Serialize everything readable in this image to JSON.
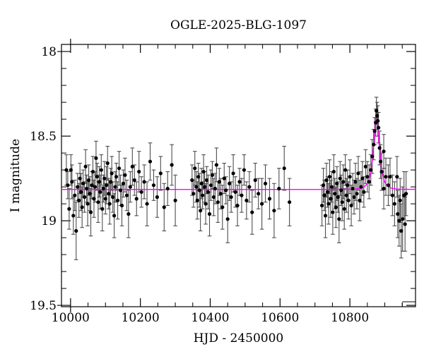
{
  "figure": {
    "background": "#ffffff"
  },
  "chart_data": {
    "type": "scatter",
    "title": "OGLE-2025-BLG-1097",
    "xlabel": "HJD - 2450000",
    "ylabel": "I magnitude",
    "xlim": [
      9974,
      10988
    ],
    "ylim": [
      19.508,
      17.958
    ],
    "y_axis_inverted": true,
    "grid": false,
    "legend": "none",
    "x_major_ticks": [
      {
        "value": 10000,
        "label": "10000"
      },
      {
        "value": 10200,
        "label": "10200"
      },
      {
        "value": 10400,
        "label": "10400"
      },
      {
        "value": 10600,
        "label": "10600"
      },
      {
        "value": 10800,
        "label": "10800"
      }
    ],
    "x_minor_step": 50,
    "y_major_ticks": [
      {
        "value": 18,
        "label": "18"
      },
      {
        "value": 18.5,
        "label": "18.5"
      },
      {
        "value": 19,
        "label": "19"
      },
      {
        "value": 19.5,
        "label": "19.5"
      }
    ],
    "y_minor_step": 0.1,
    "colors": {
      "points": "#000000",
      "error_bars": "#4d4d4d",
      "model_curve": "#ff00ff",
      "axis": "#000000"
    },
    "model": {
      "type": "paczynski_point_lens",
      "t0": 10876,
      "tE": 11.5,
      "u0": 0.86,
      "baseline_mag": 18.815,
      "peak_mag": 18.4
    },
    "points": [
      [
        9988,
        18.7,
        0.09
      ],
      [
        9992,
        18.79,
        0.08
      ],
      [
        9996,
        18.93,
        0.12
      ],
      [
        10001,
        18.7,
        0.09
      ],
      [
        10004,
        18.77,
        0.1
      ],
      [
        10008,
        18.97,
        0.11
      ],
      [
        10012,
        18.85,
        0.09
      ],
      [
        10016,
        19.06,
        0.17
      ],
      [
        10020,
        18.8,
        0.08
      ],
      [
        10024,
        18.88,
        0.1
      ],
      [
        10027,
        18.75,
        0.09
      ],
      [
        10030,
        18.83,
        0.11
      ],
      [
        10033,
        18.92,
        0.12
      ],
      [
        10036,
        18.78,
        0.08
      ],
      [
        10040,
        18.86,
        0.09
      ],
      [
        10043,
        18.68,
        0.1
      ],
      [
        10046,
        18.81,
        0.08
      ],
      [
        10049,
        18.9,
        0.13
      ],
      [
        10052,
        18.76,
        0.09
      ],
      [
        10055,
        18.84,
        0.1
      ],
      [
        10058,
        18.95,
        0.14
      ],
      [
        10061,
        18.79,
        0.08
      ],
      [
        10064,
        18.71,
        0.09
      ],
      [
        10067,
        18.87,
        0.11
      ],
      [
        10070,
        18.8,
        0.09
      ],
      [
        10073,
        18.63,
        0.1
      ],
      [
        10076,
        18.74,
        0.08
      ],
      [
        10079,
        18.89,
        0.12
      ],
      [
        10082,
        18.77,
        0.09
      ],
      [
        10085,
        18.83,
        0.1
      ],
      [
        10088,
        18.7,
        0.09
      ],
      [
        10091,
        18.93,
        0.13
      ],
      [
        10094,
        18.81,
        0.08
      ],
      [
        10097,
        18.75,
        0.1
      ],
      [
        10100,
        18.87,
        0.09
      ],
      [
        10103,
        18.79,
        0.11
      ],
      [
        10106,
        18.66,
        0.1
      ],
      [
        10109,
        18.84,
        0.09
      ],
      [
        10112,
        18.9,
        0.12
      ],
      [
        10115,
        18.77,
        0.08
      ],
      [
        10118,
        18.72,
        0.1
      ],
      [
        10121,
        18.86,
        0.09
      ],
      [
        10125,
        18.97,
        0.13
      ],
      [
        10128,
        18.8,
        0.09
      ],
      [
        10131,
        18.74,
        0.08
      ],
      [
        10135,
        18.88,
        0.11
      ],
      [
        10139,
        18.69,
        0.1
      ],
      [
        10143,
        18.82,
        0.09
      ],
      [
        10147,
        18.91,
        0.12
      ],
      [
        10151,
        18.78,
        0.08
      ],
      [
        10156,
        18.73,
        0.1
      ],
      [
        10161,
        18.85,
        0.09
      ],
      [
        10166,
        18.96,
        0.14
      ],
      [
        10171,
        18.8,
        0.09
      ],
      [
        10177,
        18.68,
        0.11
      ],
      [
        10183,
        18.76,
        0.09
      ],
      [
        10189,
        18.87,
        0.1
      ],
      [
        10196,
        18.71,
        0.12
      ],
      [
        10203,
        18.83,
        0.09
      ],
      [
        10211,
        18.77,
        0.1
      ],
      [
        10219,
        18.9,
        0.13
      ],
      [
        10228,
        18.65,
        0.11
      ],
      [
        10238,
        18.79,
        0.09
      ],
      [
        10248,
        18.86,
        0.12
      ],
      [
        10258,
        18.72,
        0.1
      ],
      [
        10268,
        18.92,
        0.14
      ],
      [
        10278,
        18.81,
        0.1
      ],
      [
        10290,
        18.67,
        0.12
      ],
      [
        10300,
        18.88,
        0.15
      ],
      [
        10348,
        18.76,
        0.09
      ],
      [
        10352,
        18.84,
        0.08
      ],
      [
        10356,
        18.69,
        0.1
      ],
      [
        10360,
        18.8,
        0.09
      ],
      [
        10363,
        18.88,
        0.11
      ],
      [
        10366,
        18.74,
        0.08
      ],
      [
        10369,
        18.82,
        0.1
      ],
      [
        10372,
        18.94,
        0.12
      ],
      [
        10375,
        18.78,
        0.09
      ],
      [
        10378,
        18.85,
        0.08
      ],
      [
        10381,
        18.71,
        0.1
      ],
      [
        10384,
        18.8,
        0.09
      ],
      [
        10387,
        18.9,
        0.12
      ],
      [
        10390,
        18.76,
        0.08
      ],
      [
        10394,
        18.83,
        0.1
      ],
      [
        10398,
        18.96,
        0.13
      ],
      [
        10402,
        18.79,
        0.09
      ],
      [
        10406,
        18.73,
        0.08
      ],
      [
        10410,
        18.86,
        0.11
      ],
      [
        10414,
        18.81,
        0.09
      ],
      [
        10418,
        18.67,
        0.1
      ],
      [
        10422,
        18.89,
        0.12
      ],
      [
        10426,
        18.77,
        0.08
      ],
      [
        10430,
        18.84,
        0.09
      ],
      [
        10435,
        18.92,
        0.13
      ],
      [
        10440,
        18.75,
        0.09
      ],
      [
        10445,
        18.82,
        0.08
      ],
      [
        10450,
        18.99,
        0.14
      ],
      [
        10455,
        18.78,
        0.1
      ],
      [
        10460,
        18.86,
        0.09
      ],
      [
        10466,
        18.72,
        0.11
      ],
      [
        10472,
        18.83,
        0.09
      ],
      [
        10478,
        18.91,
        0.12
      ],
      [
        10484,
        18.77,
        0.08
      ],
      [
        10490,
        18.85,
        0.1
      ],
      [
        10497,
        18.7,
        0.09
      ],
      [
        10504,
        18.88,
        0.11
      ],
      [
        10512,
        18.8,
        0.09
      ],
      [
        10520,
        18.95,
        0.13
      ],
      [
        10529,
        18.76,
        0.1
      ],
      [
        10538,
        18.84,
        0.09
      ],
      [
        10548,
        18.9,
        0.15
      ],
      [
        10558,
        18.78,
        0.11
      ],
      [
        10570,
        18.87,
        0.12
      ],
      [
        10583,
        18.94,
        0.16
      ],
      [
        10597,
        18.81,
        0.12
      ],
      [
        10612,
        18.69,
        0.13
      ],
      [
        10627,
        18.89,
        0.14
      ],
      [
        10720,
        18.91,
        0.12
      ],
      [
        10724,
        18.79,
        0.1
      ],
      [
        10727,
        18.85,
        0.09
      ],
      [
        10730,
        18.97,
        0.13
      ],
      [
        10733,
        18.76,
        0.1
      ],
      [
        10736,
        18.83,
        0.09
      ],
      [
        10739,
        18.9,
        0.12
      ],
      [
        10742,
        18.74,
        0.1
      ],
      [
        10745,
        18.87,
        0.11
      ],
      [
        10748,
        18.8,
        0.09
      ],
      [
        10751,
        18.95,
        0.13
      ],
      [
        10754,
        18.71,
        0.1
      ],
      [
        10757,
        18.84,
        0.09
      ],
      [
        10760,
        18.92,
        0.12
      ],
      [
        10763,
        18.78,
        0.1
      ],
      [
        10766,
        18.86,
        0.09
      ],
      [
        10769,
        18.99,
        0.14
      ],
      [
        10772,
        18.75,
        0.1
      ],
      [
        10775,
        18.82,
        0.09
      ],
      [
        10778,
        18.89,
        0.11
      ],
      [
        10781,
        18.77,
        0.1
      ],
      [
        10784,
        18.93,
        0.12
      ],
      [
        10787,
        18.7,
        0.09
      ],
      [
        10790,
        18.85,
        0.1
      ],
      [
        10793,
        18.79,
        0.09
      ],
      [
        10796,
        18.88,
        0.11
      ],
      [
        10800,
        18.74,
        0.1
      ],
      [
        10804,
        18.91,
        0.12
      ],
      [
        10808,
        18.81,
        0.09
      ],
      [
        10812,
        18.86,
        0.1
      ],
      [
        10816,
        18.77,
        0.11
      ],
      [
        10820,
        18.84,
        0.09
      ],
      [
        10824,
        18.72,
        0.1
      ],
      [
        10828,
        18.88,
        0.12
      ],
      [
        10832,
        18.8,
        0.09
      ],
      [
        10836,
        18.75,
        0.1
      ],
      [
        10840,
        18.83,
        0.09
      ],
      [
        10845,
        18.68,
        0.1
      ],
      [
        10850,
        18.74,
        0.09
      ],
      [
        10855,
        18.77,
        0.1
      ],
      [
        10860,
        18.7,
        0.09
      ],
      [
        10864,
        18.62,
        0.1
      ],
      [
        10868,
        18.55,
        0.09
      ],
      [
        10871,
        18.47,
        0.08
      ],
      [
        10874,
        18.42,
        0.08
      ],
      [
        10876,
        18.35,
        0.08
      ],
      [
        10878,
        18.38,
        0.08
      ],
      [
        10880,
        18.41,
        0.09
      ],
      [
        10882,
        18.45,
        0.09
      ],
      [
        10885,
        18.57,
        0.1
      ],
      [
        10888,
        18.65,
        0.1
      ],
      [
        10891,
        18.71,
        0.11
      ],
      [
        10897,
        18.59,
        0.1
      ],
      [
        10897,
        18.81,
        0.12
      ],
      [
        10903,
        18.74,
        0.11
      ],
      [
        10910,
        18.79,
        0.12
      ],
      [
        10915,
        18.74,
        0.11
      ],
      [
        10922,
        18.85,
        0.12
      ],
      [
        10928,
        18.9,
        0.13
      ],
      [
        10935,
        18.74,
        0.12
      ],
      [
        10937,
        18.96,
        0.14
      ],
      [
        10941,
        19.0,
        0.15
      ],
      [
        10944,
        18.88,
        0.13
      ],
      [
        10947,
        19.06,
        0.16
      ],
      [
        10951,
        18.99,
        0.19
      ],
      [
        10955,
        18.85,
        0.14
      ],
      [
        10958,
        19.02,
        0.16
      ],
      [
        10961,
        18.84,
        0.13
      ]
    ]
  }
}
